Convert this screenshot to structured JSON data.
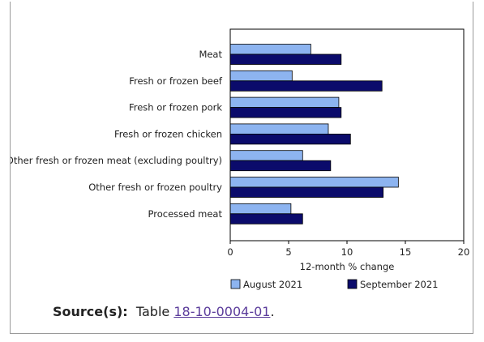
{
  "chart_data": {
    "type": "bar",
    "orientation": "horizontal",
    "categories": [
      "Meat",
      "Fresh or frozen beef",
      "Fresh or frozen pork",
      "Fresh or frozen chicken",
      "Other fresh or frozen meat (excluding poultry)",
      "Other fresh or frozen poultry",
      "Processed meat"
    ],
    "series": [
      {
        "name": "August 2021",
        "color": "#8db4f0",
        "values": [
          6.9,
          5.3,
          9.3,
          8.4,
          6.2,
          14.4,
          5.2
        ]
      },
      {
        "name": "September 2021",
        "color": "#0b0b6b",
        "values": [
          9.5,
          13.0,
          9.5,
          10.3,
          8.6,
          13.1,
          6.2
        ]
      }
    ],
    "xlabel": "12-month % change",
    "xlim": [
      0,
      20
    ],
    "xticks": [
      "0",
      "5",
      "10",
      "15",
      "20"
    ],
    "legend": "bottom",
    "grid": false
  },
  "source": {
    "label": "Source(s):",
    "text": "Table",
    "link_text": "18-10-0004-01",
    "trailing": "."
  }
}
